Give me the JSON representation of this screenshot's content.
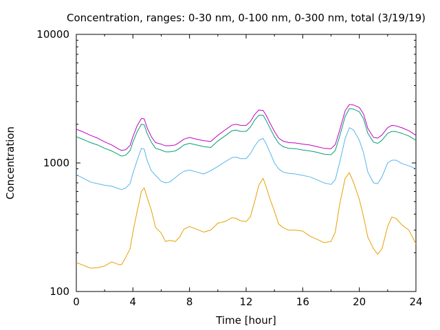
{
  "chart_data": {
    "type": "line",
    "title": "Concentration, ranges: 0-30 nm, 0-100 nm, 0-300 nm, total (3/19/19)",
    "xlabel": "Time [hour]",
    "ylabel": "Concentration",
    "xlim": [
      0,
      24
    ],
    "ylim": [
      100,
      10000
    ],
    "yscale": "log",
    "xticks": [
      0,
      4,
      8,
      12,
      16,
      20,
      24
    ],
    "xtick_labels": [
      "0",
      "4",
      "8",
      "12",
      "16",
      "20",
      "24"
    ],
    "yticks": [
      100,
      1000,
      10000
    ],
    "ytick_labels": [
      "100",
      "1000",
      "10000"
    ],
    "grid": false,
    "legend": "none",
    "series": [
      {
        "color": "#e69f00",
        "x": [
          0,
          0.5,
          1,
          1.5,
          2,
          2.5,
          3,
          3.2,
          3.5,
          3.8,
          4.0,
          4.3,
          4.6,
          4.8,
          5.0,
          5.3,
          5.6,
          6.0,
          6.3,
          6.6,
          7.0,
          7.3,
          7.6,
          8.0,
          8.5,
          9.0,
          9.5,
          10.0,
          10.5,
          11.0,
          11.3,
          11.6,
          12.0,
          12.3,
          12.6,
          12.9,
          13.2,
          13.4,
          13.7,
          14.0,
          14.3,
          14.6,
          15.0,
          15.5,
          16.0,
          16.5,
          17.0,
          17.5,
          18.0,
          18.3,
          18.6,
          19.0,
          19.3,
          19.6,
          20.0,
          20.3,
          20.6,
          21.0,
          21.3,
          21.6,
          22.0,
          22.3,
          22.6,
          23.0,
          23.5,
          24.0
        ],
        "y": [
          168,
          160,
          152,
          153,
          158,
          170,
          162,
          162,
          185,
          215,
          290,
          420,
          600,
          640,
          540,
          430,
          315,
          285,
          245,
          250,
          245,
          265,
          305,
          320,
          305,
          290,
          300,
          340,
          350,
          375,
          370,
          355,
          350,
          380,
          500,
          670,
          760,
          660,
          520,
          420,
          335,
          315,
          300,
          300,
          295,
          270,
          255,
          240,
          245,
          290,
          470,
          760,
          840,
          700,
          520,
          380,
          265,
          215,
          195,
          215,
          320,
          380,
          370,
          330,
          300,
          235
        ]
      },
      {
        "color": "#56b4e9",
        "x": [
          0,
          0.5,
          1,
          1.5,
          2,
          2.5,
          3,
          3.2,
          3.5,
          3.8,
          4.0,
          4.3,
          4.6,
          4.8,
          5.0,
          5.3,
          5.6,
          6.0,
          6.3,
          6.6,
          7.0,
          7.3,
          7.6,
          8.0,
          8.5,
          9.0,
          9.5,
          10.0,
          10.5,
          11.0,
          11.3,
          11.6,
          12.0,
          12.3,
          12.6,
          12.9,
          13.2,
          13.4,
          13.7,
          14.0,
          14.3,
          14.6,
          15.0,
          15.5,
          16.0,
          16.5,
          17.0,
          17.5,
          18.0,
          18.3,
          18.6,
          19.0,
          19.3,
          19.6,
          20.0,
          20.3,
          20.6,
          21.0,
          21.3,
          21.6,
          22.0,
          22.3,
          22.6,
          23.0,
          23.5,
          24.0
        ],
        "y": [
          810,
          760,
          710,
          690,
          670,
          660,
          630,
          620,
          640,
          690,
          830,
          1050,
          1300,
          1280,
          1050,
          870,
          800,
          720,
          700,
          710,
          770,
          820,
          860,
          880,
          850,
          820,
          870,
          940,
          1020,
          1100,
          1110,
          1080,
          1080,
          1180,
          1350,
          1500,
          1550,
          1420,
          1200,
          1000,
          900,
          850,
          830,
          820,
          800,
          780,
          740,
          700,
          680,
          740,
          1000,
          1550,
          1880,
          1800,
          1500,
          1200,
          850,
          700,
          690,
          780,
          1000,
          1050,
          1050,
          990,
          950,
          900
        ]
      },
      {
        "color": "#009e73",
        "x": [
          0,
          0.5,
          1,
          1.5,
          2,
          2.5,
          3,
          3.2,
          3.5,
          3.8,
          4.0,
          4.3,
          4.6,
          4.8,
          5.0,
          5.3,
          5.6,
          6.0,
          6.3,
          6.6,
          7.0,
          7.3,
          7.6,
          8.0,
          8.5,
          9.0,
          9.5,
          10.0,
          10.5,
          11.0,
          11.3,
          11.6,
          12.0,
          12.3,
          12.6,
          12.9,
          13.2,
          13.4,
          13.7,
          14.0,
          14.3,
          14.6,
          15.0,
          15.5,
          16.0,
          16.5,
          17.0,
          17.5,
          18.0,
          18.3,
          18.6,
          19.0,
          19.3,
          19.6,
          20.0,
          20.3,
          20.6,
          21.0,
          21.3,
          21.6,
          22.0,
          22.3,
          22.6,
          23.0,
          23.5,
          24.0
        ],
        "y": [
          1600,
          1520,
          1440,
          1380,
          1300,
          1240,
          1160,
          1130,
          1150,
          1250,
          1450,
          1750,
          2000,
          1980,
          1700,
          1450,
          1300,
          1260,
          1220,
          1220,
          1240,
          1300,
          1380,
          1420,
          1380,
          1340,
          1320,
          1480,
          1620,
          1780,
          1800,
          1760,
          1760,
          1900,
          2150,
          2350,
          2350,
          2150,
          1850,
          1600,
          1420,
          1340,
          1300,
          1290,
          1260,
          1240,
          1210,
          1170,
          1160,
          1250,
          1600,
          2300,
          2650,
          2620,
          2500,
          2200,
          1700,
          1450,
          1420,
          1500,
          1700,
          1760,
          1750,
          1700,
          1620,
          1500
        ]
      },
      {
        "color": "#c000c0",
        "x": [
          0,
          0.5,
          1,
          1.5,
          2,
          2.5,
          3,
          3.2,
          3.5,
          3.8,
          4.0,
          4.3,
          4.6,
          4.8,
          5.0,
          5.3,
          5.6,
          6.0,
          6.3,
          6.6,
          7.0,
          7.3,
          7.6,
          8.0,
          8.5,
          9.0,
          9.5,
          10.0,
          10.5,
          11.0,
          11.3,
          11.6,
          12.0,
          12.3,
          12.6,
          12.9,
          13.2,
          13.4,
          13.7,
          14.0,
          14.3,
          14.6,
          15.0,
          15.5,
          16.0,
          16.5,
          17.0,
          17.5,
          18.0,
          18.3,
          18.6,
          19.0,
          19.3,
          19.6,
          20.0,
          20.3,
          20.6,
          21.0,
          21.3,
          21.6,
          22.0,
          22.3,
          22.6,
          23.0,
          23.5,
          24.0
        ],
        "y": [
          1830,
          1740,
          1640,
          1560,
          1460,
          1380,
          1280,
          1250,
          1270,
          1370,
          1600,
          1950,
          2220,
          2200,
          1880,
          1600,
          1440,
          1400,
          1360,
          1360,
          1380,
          1450,
          1530,
          1580,
          1530,
          1490,
          1470,
          1640,
          1800,
          1970,
          2000,
          1960,
          1960,
          2100,
          2380,
          2580,
          2560,
          2360,
          2030,
          1760,
          1560,
          1480,
          1440,
          1430,
          1400,
          1380,
          1340,
          1300,
          1290,
          1390,
          1780,
          2550,
          2850,
          2820,
          2700,
          2400,
          1860,
          1580,
          1560,
          1650,
          1880,
          1960,
          1940,
          1880,
          1780,
          1640
        ]
      }
    ]
  }
}
